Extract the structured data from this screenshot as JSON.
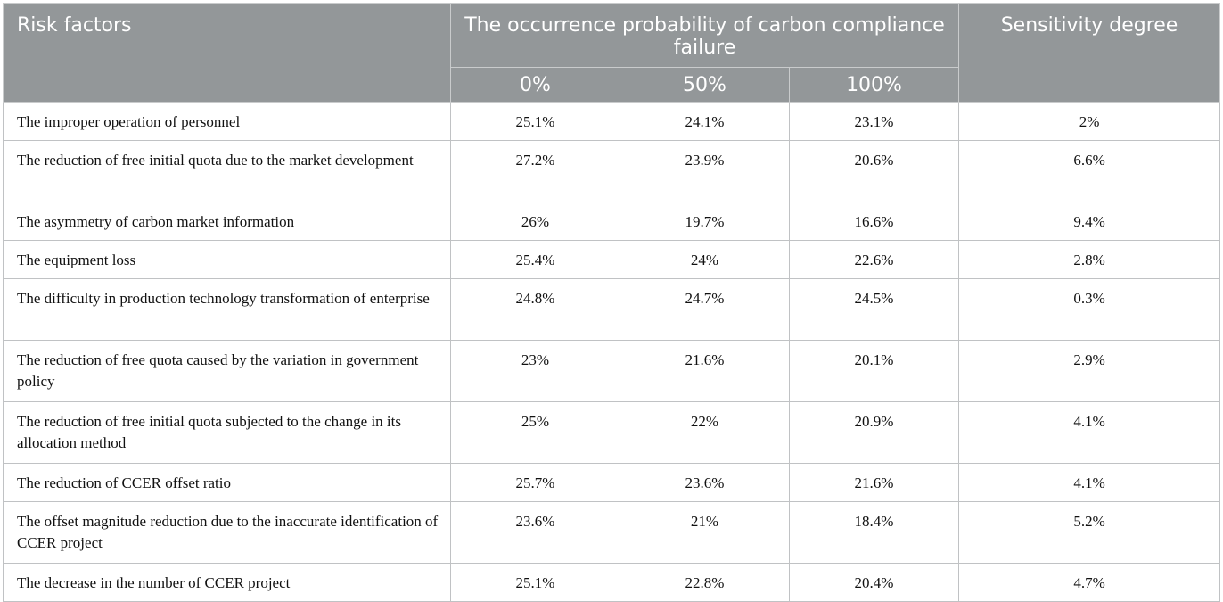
{
  "header": {
    "risk_factors": "Risk factors",
    "probability_group": "The occurrence probability of carbon compliance failure",
    "sensitivity": "Sensitivity degree",
    "levels": [
      "0%",
      "50%",
      "100%"
    ]
  },
  "rows": [
    {
      "factor": "The improper operation of personnel",
      "p0": "25.1%",
      "p50": "24.1%",
      "p100": "23.1%",
      "sensitivity": "2%"
    },
    {
      "factor": "The reduction of free initial quota due to the market development",
      "p0": "27.2%",
      "p50": "23.9%",
      "p100": "20.6%",
      "sensitivity": "6.6%"
    },
    {
      "factor": "The asymmetry of carbon market information",
      "p0": "26%",
      "p50": "19.7%",
      "p100": "16.6%",
      "sensitivity": "9.4%"
    },
    {
      "factor": "The equipment loss",
      "p0": "25.4%",
      "p50": "24%",
      "p100": "22.6%",
      "sensitivity": "2.8%"
    },
    {
      "factor": "The difficulty in production technology transformation of enterprise",
      "p0": "24.8%",
      "p50": "24.7%",
      "p100": "24.5%",
      "sensitivity": "0.3%"
    },
    {
      "factor": "The reduction of free quota caused by the variation in government policy",
      "p0": "23%",
      "p50": "21.6%",
      "p100": "20.1%",
      "sensitivity": "2.9%"
    },
    {
      "factor": "The reduction of free initial quota subjected to the change in its allocation method",
      "p0": "25%",
      "p50": "22%",
      "p100": "20.9%",
      "sensitivity": "4.1%"
    },
    {
      "factor": "The reduction of CCER offset ratio",
      "p0": "25.7%",
      "p50": "23.6%",
      "p100": "21.6%",
      "sensitivity": "4.1%"
    },
    {
      "factor": "The offset magnitude reduction due to the inaccurate identification of CCER project",
      "p0": "23.6%",
      "p50": "21%",
      "p100": "18.4%",
      "sensitivity": "5.2%"
    },
    {
      "factor": "The decrease in the number of CCER project",
      "p0": "25.1%",
      "p50": "22.8%",
      "p100": "20.4%",
      "sensitivity": "4.7%"
    }
  ]
}
